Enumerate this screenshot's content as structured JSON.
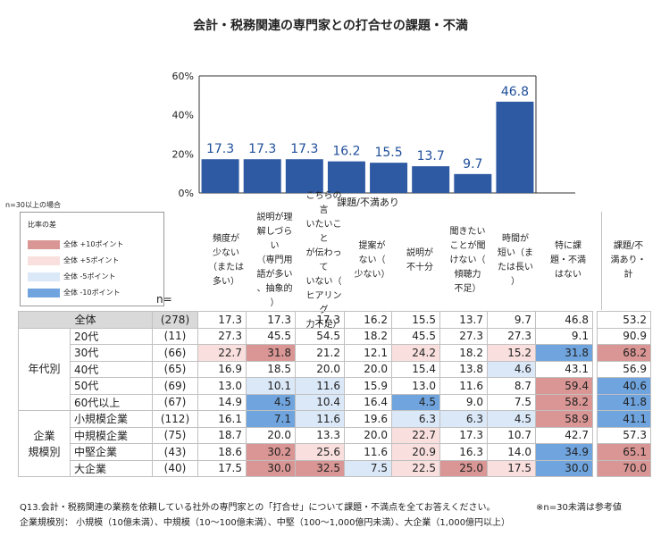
{
  "title": "会計・税務関連の専門家との打合せの課題・不満",
  "chart_data": {
    "type": "bar",
    "categories": [
      "頻度が少ない（または多い）",
      "説明が理解しづらい（専門用語が多い、抽象的）",
      "こちらの言いたいことが伝わっていない（ヒアリング力不足）",
      "提案がない（少ない）",
      "説明が不十分",
      "聞きたいことが聞けない（傾聴力不足）",
      "時間が短い（または長い）",
      "特に課題・不満はない"
    ],
    "values": [
      17.3,
      17.3,
      17.3,
      16.2,
      15.5,
      13.7,
      9.7,
      46.8
    ],
    "value_labels": [
      "17.3",
      "17.3",
      "17.3",
      "16.2",
      "15.5",
      "13.7",
      "9.7",
      "46.8"
    ],
    "yticks": [
      "60%",
      "40%",
      "20%",
      "0%"
    ],
    "ylim": [
      0,
      60
    ],
    "bar_color": "#2e59a3",
    "label_color": "#1f4e9a"
  },
  "condition_note": "n=30以上の場合",
  "legend": {
    "title": "比率の差",
    "items": [
      {
        "label": "全体 +10ポイント",
        "color": "#d99694"
      },
      {
        "label": "全体 +5ポイント",
        "color": "#f9e0df"
      },
      {
        "label": "全体 -5ポイント",
        "color": "#dbe8f8"
      },
      {
        "label": "全体 -10ポイント",
        "color": "#6fa4de"
      }
    ]
  },
  "n_label": "n=",
  "header_group": "課題/不満あり",
  "columns": [
    {
      "label": "頻度が\n少ない\n（または\n多い）"
    },
    {
      "label": "説明が理\n解しづらい\n（専門用\n語が多い\n、抽象的\n）"
    },
    {
      "label": "こちらの言\nいたいこと\nが伝わって\nいない（\nヒアリング\n力不足）"
    },
    {
      "label": "提案が\nない（\n少ない）"
    },
    {
      "label": "説明が\n不十分"
    },
    {
      "label": "聞きたい\nことが聞\nけない（\n傾聴力\n不足）"
    },
    {
      "label": "時間が\n短い（ま\nたは長い\n）"
    },
    {
      "label": "特に課\n題・不満\nはない"
    },
    {
      "label": "課題/不\n満あり・\n計"
    }
  ],
  "total_row": {
    "label": "全体",
    "n": "(278)",
    "values": [
      "17.3",
      "17.3",
      "17.3",
      "16.2",
      "15.5",
      "13.7",
      "9.7",
      "46.8",
      "53.2"
    ]
  },
  "groups": [
    {
      "label": "年代別",
      "rows": [
        {
          "label": "20代",
          "n": "(11)",
          "values": [
            "27.3",
            "45.5",
            "54.5",
            "18.2",
            "45.5",
            "27.3",
            "27.3",
            "9.1",
            "90.9"
          ],
          "shades": [
            "",
            "",
            "",
            "",
            "",
            "",
            "",
            "",
            ""
          ]
        },
        {
          "label": "30代",
          "n": "(66)",
          "values": [
            "22.7",
            "31.8",
            "21.2",
            "12.1",
            "24.2",
            "18.2",
            "15.2",
            "31.8",
            "68.2"
          ],
          "shades": [
            "p5",
            "p10",
            "",
            "",
            "p5",
            "",
            "p5",
            "m10",
            "p10"
          ]
        },
        {
          "label": "40代",
          "n": "(65)",
          "values": [
            "16.9",
            "18.5",
            "20.0",
            "20.0",
            "15.4",
            "13.8",
            "4.6",
            "43.1",
            "56.9"
          ],
          "shades": [
            "",
            "",
            "",
            "",
            "",
            "",
            "m5",
            "",
            ""
          ]
        },
        {
          "label": "50代",
          "n": "(69)",
          "values": [
            "13.0",
            "10.1",
            "11.6",
            "15.9",
            "13.0",
            "11.6",
            "8.7",
            "59.4",
            "40.6"
          ],
          "shades": [
            "",
            "m5",
            "m5",
            "",
            "",
            "",
            "",
            "p10",
            "m10"
          ]
        },
        {
          "label": "60代以上",
          "n": "(67)",
          "values": [
            "14.9",
            "4.5",
            "10.4",
            "16.4",
            "4.5",
            "9.0",
            "7.5",
            "58.2",
            "41.8"
          ],
          "shades": [
            "",
            "m10",
            "m5",
            "",
            "m10",
            "",
            "",
            "p10",
            "m10"
          ]
        }
      ]
    },
    {
      "label": "企業\n規模別",
      "rows": [
        {
          "label": "小規模企業",
          "n": "(112)",
          "values": [
            "16.1",
            "7.1",
            "11.6",
            "19.6",
            "6.3",
            "6.3",
            "4.5",
            "58.9",
            "41.1"
          ],
          "shades": [
            "",
            "m10",
            "m5",
            "",
            "m5",
            "m5",
            "m5",
            "p10",
            "m10"
          ]
        },
        {
          "label": "中規模企業",
          "n": "(75)",
          "values": [
            "18.7",
            "20.0",
            "13.3",
            "20.0",
            "22.7",
            "17.3",
            "10.7",
            "42.7",
            "57.3"
          ],
          "shades": [
            "",
            "",
            "",
            "",
            "p5",
            "",
            "",
            "",
            ""
          ]
        },
        {
          "label": "中堅企業",
          "n": "(43)",
          "values": [
            "18.6",
            "30.2",
            "25.6",
            "11.6",
            "20.9",
            "16.3",
            "14.0",
            "34.9",
            "65.1"
          ],
          "shades": [
            "",
            "p10",
            "p5",
            "",
            "p5",
            "",
            "",
            "m10",
            "p10"
          ]
        },
        {
          "label": "大企業",
          "n": "(40)",
          "values": [
            "17.5",
            "30.0",
            "32.5",
            "7.5",
            "22.5",
            "25.0",
            "17.5",
            "30.0",
            "70.0"
          ],
          "shades": [
            "",
            "p10",
            "p10",
            "m5",
            "p5",
            "p10",
            "p5",
            "m10",
            "p10"
          ]
        }
      ]
    }
  ],
  "footnote1": "Q13.会計・税務関連の業務を依頼している社外の専門家との「打合せ」について課題・不満点を全てお答えください。",
  "footnote2": "企業規模別： 小規模（10億未満）、中規模（10～100億未満）、中堅（100～1,000億円未満）、大企業（1,000億円以上）",
  "footnote_n": "※n=30未満は参考値",
  "shade_colors": {
    "p10": "#d99694",
    "p5": "#f9e0df",
    "m5": "#dbe8f8",
    "m10": "#6fa4de",
    "total_bg": "#d9d9d9"
  }
}
